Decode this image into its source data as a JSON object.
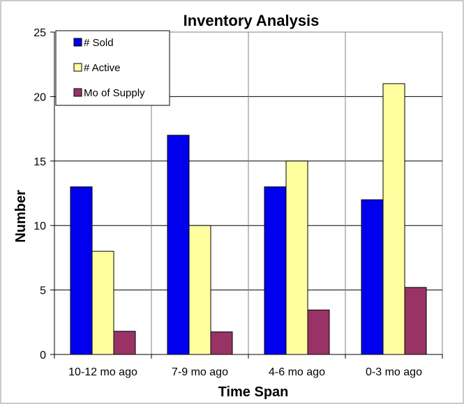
{
  "chart_data": {
    "type": "bar",
    "title": "Inventory Analysis",
    "xlabel": "Time Span",
    "ylabel": "Number",
    "categories": [
      "10-12 mo ago",
      "7-9 mo ago",
      "4-6 mo ago",
      "0-3 mo ago"
    ],
    "series": [
      {
        "name": "# Sold",
        "color": "#0000ee",
        "values": [
          13,
          17,
          13,
          12
        ]
      },
      {
        "name": "# Active",
        "color": "#ffffa0",
        "values": [
          8,
          10,
          15,
          21
        ]
      },
      {
        "name": "Mo of Supply",
        "color": "#993366",
        "values": [
          1.8,
          1.75,
          3.45,
          5.2
        ]
      }
    ],
    "ylim": [
      0,
      25
    ],
    "yticks": [
      0,
      5,
      10,
      15,
      20,
      25
    ],
    "grid": true,
    "legend_position": "top-left"
  }
}
